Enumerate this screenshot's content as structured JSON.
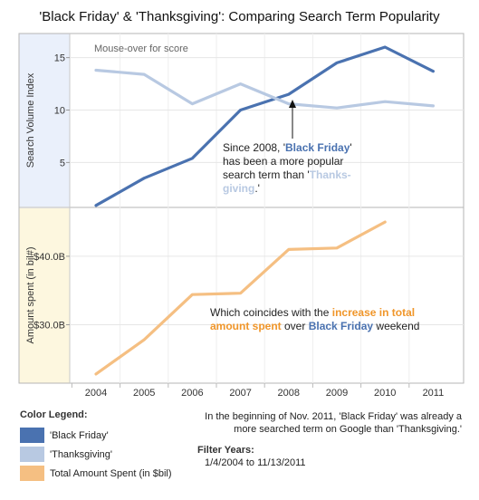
{
  "title": "'Black Friday' & 'Thanksgiving': Comparing Search Term Popularity",
  "hint": "Mouse-over for score",
  "annotations": {
    "search": {
      "line1_prefix": "Since 2008, '",
      "line1_bf": "Black Friday",
      "line1_suffix": "'",
      "line2": "has been a more popular",
      "line3_prefix": "search term than '",
      "line3_tg": "Thanks-",
      "line4_tg": "giving",
      "line4_suffix": ".'"
    },
    "spend": {
      "line1_prefix": "Which coincides with the ",
      "line1_hl": "increase in total",
      "line2_hl": "amount spent",
      "line2_mid": " over ",
      "line2_bf": "Black Friday",
      "line2_suffix": " weekend"
    }
  },
  "legend": {
    "title": "Color Legend:",
    "items": [
      {
        "label": "'Black Friday'",
        "color": "#4a72b0"
      },
      {
        "label": "'Thanksgiving'",
        "color": "#b8c9e2"
      },
      {
        "label": "Total Amount Spent (in $bil)",
        "color": "#f5bf82"
      }
    ]
  },
  "note": {
    "line1": "In the beginning of Nov. 2011, 'Black Friday' was already a",
    "line2": "more searched term on Google than 'Thanksgiving.'"
  },
  "filter": {
    "title": "Filter Years:",
    "range": "1/4/2004 to 11/13/2011"
  },
  "colors": {
    "black_friday": "#4a72b0",
    "thanksgiving": "#b8c9e2",
    "spend": "#f5bf82",
    "spend_text": "#f0962a",
    "search_panel_bg": "#eaf0fb",
    "spend_panel_bg": "#fdf7df"
  },
  "chart_data": [
    {
      "type": "line",
      "ylabel": "Search Volume Index",
      "x": [
        2004,
        2005,
        2006,
        2007,
        2008,
        2009,
        2010,
        2011
      ],
      "ylim": [
        0.8,
        17.3
      ],
      "yticks": [
        5,
        10,
        15
      ],
      "series": [
        {
          "name": "'Black Friday'",
          "values": [
            0.9,
            3.5,
            5.4,
            10.0,
            11.5,
            14.5,
            16.0,
            13.7
          ]
        },
        {
          "name": "'Thanksgiving'",
          "values": [
            13.8,
            13.4,
            10.6,
            12.5,
            10.6,
            10.2,
            10.8,
            10.4
          ]
        }
      ],
      "grid": true
    },
    {
      "type": "line",
      "ylabel": "Amount spent (in bil#)",
      "x": [
        2004,
        2005,
        2006,
        2007,
        2008,
        2009,
        2010
      ],
      "ylim": [
        21.6,
        47.0
      ],
      "yticks": [
        30,
        40
      ],
      "ytick_labels": [
        "$30.0B",
        "$40.0B"
      ],
      "series": [
        {
          "name": "Total Amount Spent (in $bil)",
          "values": [
            22.8,
            27.8,
            34.4,
            34.6,
            41.0,
            41.2,
            45.0
          ]
        }
      ],
      "xtick_labels": [
        "2004",
        "2005",
        "2006",
        "2007",
        "2008",
        "2009",
        "2010",
        "2011"
      ],
      "grid": true
    }
  ]
}
